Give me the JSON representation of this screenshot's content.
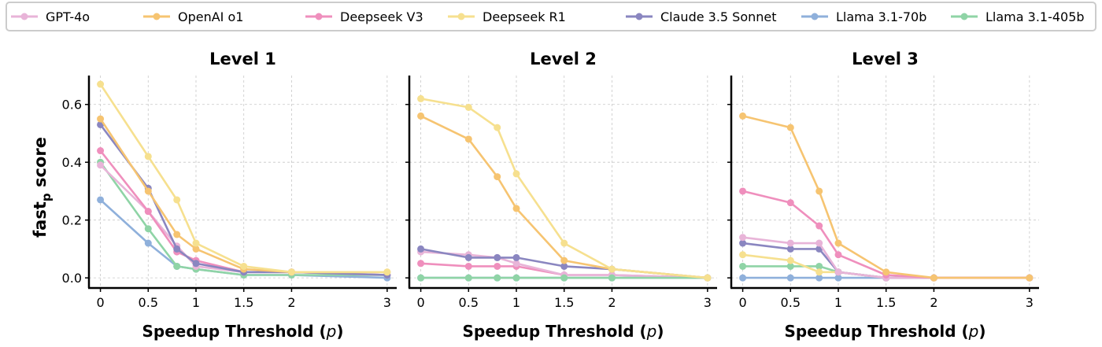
{
  "chart_data": {
    "type": "line",
    "ylabel_main": "fast",
    "ylabel_sub": "p",
    "ylabel_tail": " score",
    "xlabel_main": "Speedup Threshold (",
    "xlabel_var": "p",
    "xlabel_tail": ")",
    "x": [
      0,
      0.5,
      0.8,
      1,
      1.5,
      2,
      3
    ],
    "xticks": [
      0,
      0.5,
      1,
      1.5,
      2,
      3
    ],
    "xtick_labels": [
      "0",
      "0.5",
      "1",
      "1.5",
      "2",
      "3"
    ],
    "yticks": [
      0.0,
      0.2,
      0.4,
      0.6
    ],
    "ytick_labels": [
      "0.0",
      "0.2",
      "0.4",
      "0.6"
    ],
    "xlim": [
      -0.12,
      3.1
    ],
    "ylim": [
      -0.035,
      0.7
    ],
    "grid": true,
    "legend_position": "top",
    "legend": [
      {
        "name": "GPT-4o",
        "color": "#e8b4d8"
      },
      {
        "name": "OpenAI o1",
        "color": "#f6c471"
      },
      {
        "name": "Deepseek V3",
        "color": "#ef8fbd"
      },
      {
        "name": "Deepseek R1",
        "color": "#f6e08f"
      },
      {
        "name": "Claude 3.5 Sonnet",
        "color": "#8a86c0"
      },
      {
        "name": "Llama 3.1-70b",
        "color": "#8fb0db"
      },
      {
        "name": "Llama 3.1-405b",
        "color": "#8fd4a6"
      }
    ],
    "panels": [
      {
        "title": "Level 1",
        "series": [
          {
            "name": "Llama 3.1-70b",
            "color": "#8fb0db",
            "values": [
              0.27,
              0.12,
              0.04,
              0.03,
              0.01,
              0.01,
              0.0
            ]
          },
          {
            "name": "Llama 3.1-405b",
            "color": "#8fd4a6",
            "values": [
              0.4,
              0.17,
              0.04,
              0.03,
              0.01,
              0.01,
              0.01
            ]
          },
          {
            "name": "GPT-4o",
            "color": "#e8b4d8",
            "values": [
              0.39,
              0.23,
              0.11,
              0.04,
              0.02,
              0.02,
              0.01
            ]
          },
          {
            "name": "Deepseek V3",
            "color": "#ef8fbd",
            "values": [
              0.44,
              0.23,
              0.09,
              0.06,
              0.02,
              0.02,
              0.01
            ]
          },
          {
            "name": "Claude 3.5 Sonnet",
            "color": "#8a86c0",
            "values": [
              0.53,
              0.31,
              0.1,
              0.05,
              0.02,
              0.02,
              0.01
            ]
          },
          {
            "name": "OpenAI o1",
            "color": "#f6c471",
            "values": [
              0.55,
              0.3,
              0.15,
              0.1,
              0.03,
              0.02,
              0.02
            ]
          },
          {
            "name": "Deepseek R1",
            "color": "#f6e08f",
            "values": [
              0.67,
              0.42,
              0.27,
              0.12,
              0.04,
              0.02,
              0.02
            ]
          }
        ]
      },
      {
        "title": "Level 2",
        "series": [
          {
            "name": "Llama 3.1-70b",
            "color": "#8fb0db",
            "values": [
              0.0,
              0.0,
              0.0,
              0.0,
              0.0,
              0.0,
              0.0
            ]
          },
          {
            "name": "Deepseek V3",
            "color": "#ef8fbd",
            "values": [
              0.05,
              0.04,
              0.04,
              0.04,
              0.01,
              0.01,
              0.0
            ]
          },
          {
            "name": "GPT-4o",
            "color": "#e8b4d8",
            "values": [
              0.09,
              0.08,
              0.07,
              0.05,
              0.01,
              0.01,
              0.0
            ]
          },
          {
            "name": "Claude 3.5 Sonnet",
            "color": "#8a86c0",
            "values": [
              0.1,
              0.07,
              0.07,
              0.07,
              0.04,
              0.03,
              0.0
            ]
          },
          {
            "name": "Llama 3.1-405b",
            "color": "#8fd4a6",
            "values": [
              0.0,
              0.0,
              0.0,
              0.0,
              0.0,
              0.0,
              0.0
            ]
          },
          {
            "name": "OpenAI o1",
            "color": "#f6c471",
            "values": [
              0.56,
              0.48,
              0.35,
              0.24,
              0.06,
              0.03,
              0.0
            ]
          },
          {
            "name": "Deepseek R1",
            "color": "#f6e08f",
            "values": [
              0.62,
              0.59,
              0.52,
              0.36,
              0.12,
              0.03,
              0.0
            ]
          }
        ]
      },
      {
        "title": "Level 3",
        "series": [
          {
            "name": "Llama 3.1-70b",
            "color": "#8fb0db",
            "values": [
              0.0,
              0.0,
              0.0,
              0.0,
              0.0,
              0.0,
              0.0
            ]
          },
          {
            "name": "Llama 3.1-405b",
            "color": "#8fd4a6",
            "values": [
              0.04,
              0.04,
              0.04,
              0.02,
              0.0,
              0.0,
              0.0
            ]
          },
          {
            "name": "Deepseek R1",
            "color": "#f6e08f",
            "values": [
              0.08,
              0.06,
              0.02,
              0.02,
              0.0,
              0.0,
              0.0
            ]
          },
          {
            "name": "Claude 3.5 Sonnet",
            "color": "#8a86c0",
            "values": [
              0.12,
              0.1,
              0.1,
              0.02,
              0.0,
              0.0,
              0.0
            ]
          },
          {
            "name": "GPT-4o",
            "color": "#e8b4d8",
            "values": [
              0.14,
              0.12,
              0.12,
              0.02,
              0.0,
              0.0,
              0.0
            ]
          },
          {
            "name": "Deepseek V3",
            "color": "#ef8fbd",
            "values": [
              0.3,
              0.26,
              0.18,
              0.08,
              0.01,
              0.0,
              0.0
            ]
          },
          {
            "name": "OpenAI o1",
            "color": "#f6c471",
            "values": [
              0.56,
              0.52,
              0.3,
              0.12,
              0.02,
              0.0,
              0.0
            ]
          }
        ]
      }
    ]
  }
}
